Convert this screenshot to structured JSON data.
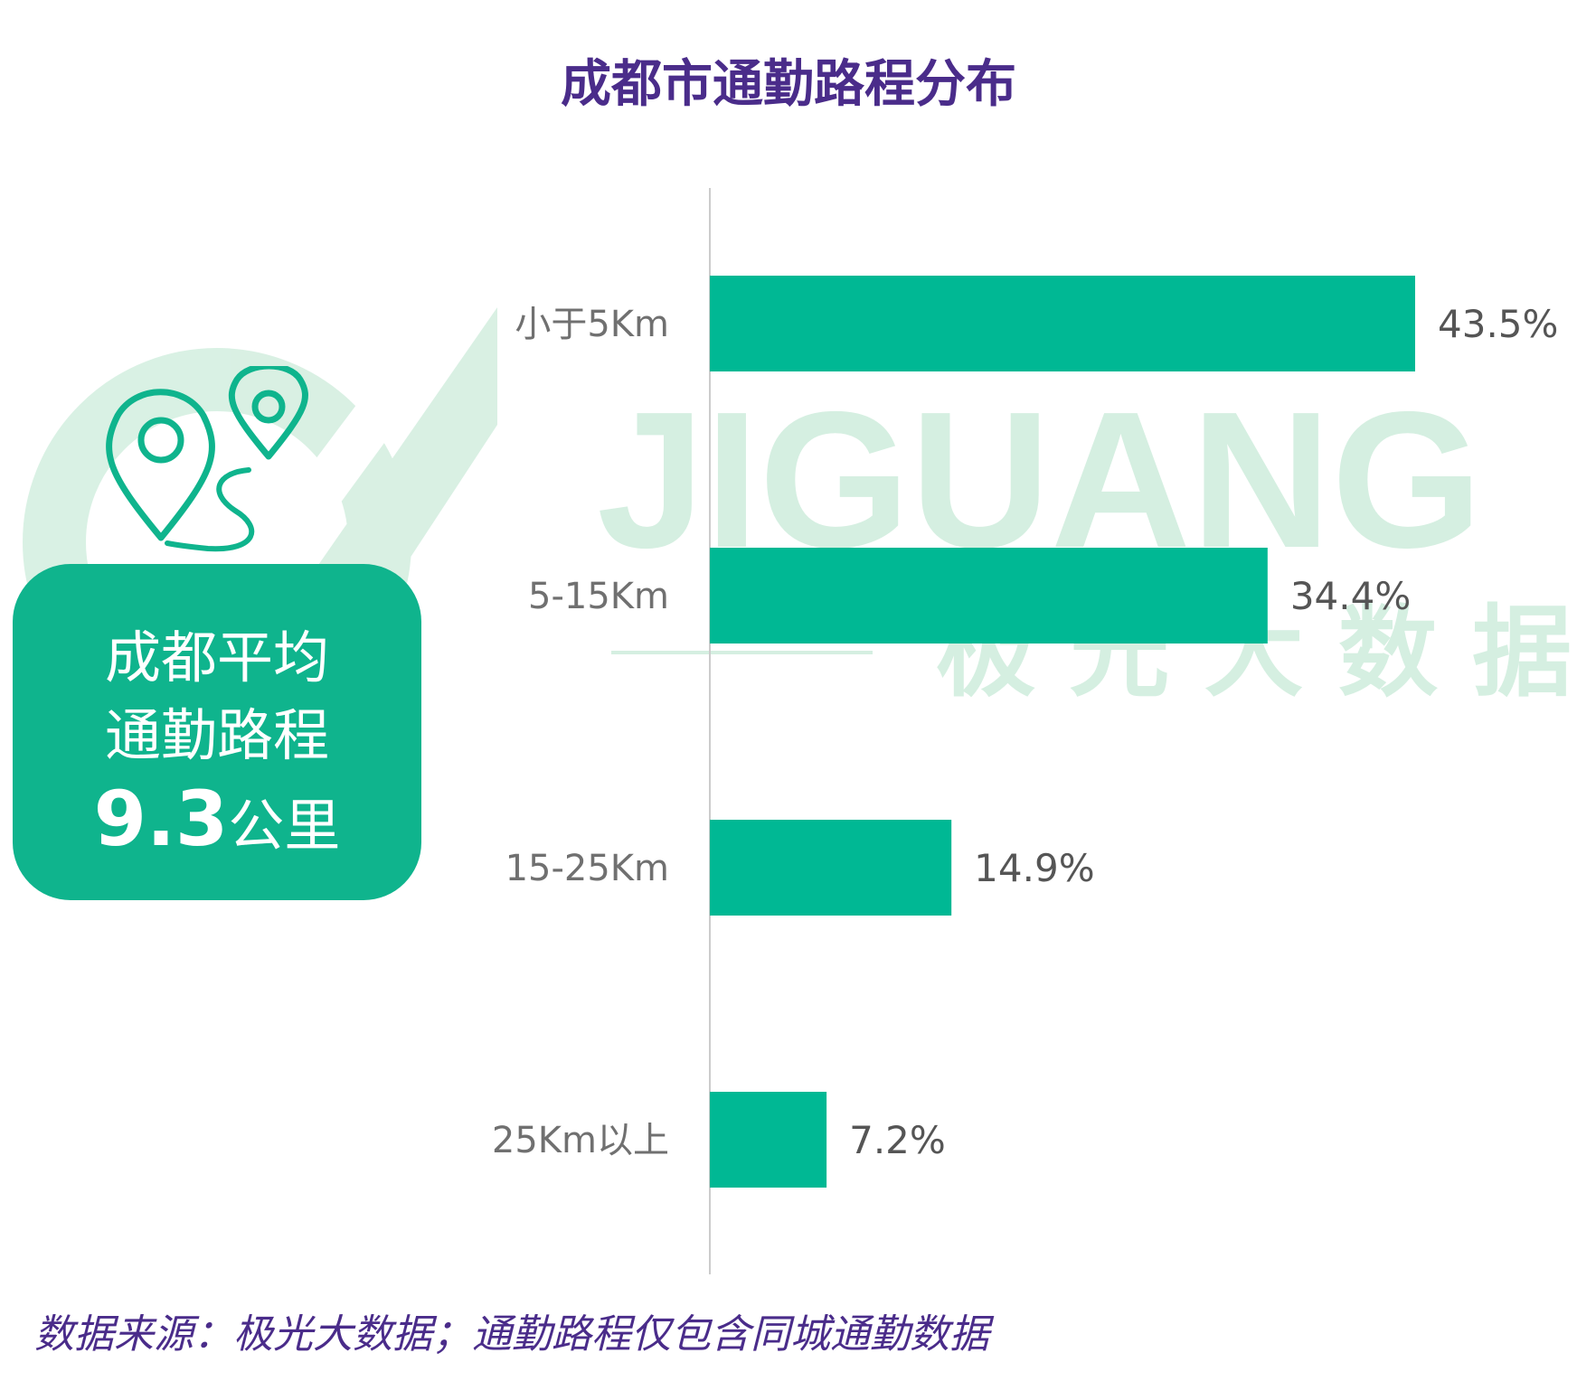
{
  "title": "成都市通勤路程分布",
  "avg_card": {
    "line1": "成都平均",
    "line2": "通勤路程",
    "value": "9.3",
    "unit": "公里"
  },
  "icons": {
    "card_icon": "map-pins-route-icon",
    "watermark_logo": "jiguang-logo-icon"
  },
  "watermark": {
    "en": "JIGUANG",
    "cn": "极 光 大 数 据"
  },
  "colors": {
    "bar": "#00b894",
    "title": "#4a2c8a",
    "card": "#0fb48d",
    "watermark": "#d5efe1"
  },
  "footnote": "数据来源：极光大数据；通勤路程仅包含同城通勤数据",
  "chart_data": {
    "type": "bar",
    "orientation": "horizontal",
    "categories": [
      "小于5Km",
      "5-15Km",
      "15-25Km",
      "25Km以上"
    ],
    "values": [
      43.5,
      34.4,
      14.9,
      7.2
    ],
    "value_labels": [
      "43.5%",
      "34.4%",
      "14.9%",
      "7.2%"
    ],
    "title": "成都市通勤路程分布",
    "xlim": [
      0,
      50
    ],
    "grid": false,
    "legend": "none"
  }
}
